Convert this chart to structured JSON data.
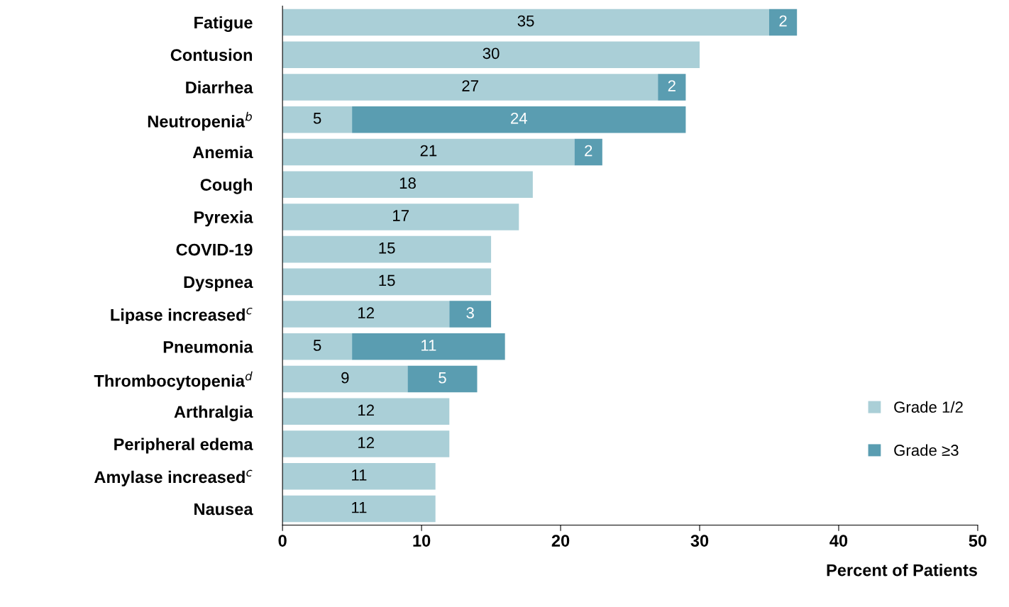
{
  "chart_data": {
    "type": "bar",
    "orientation": "horizontal",
    "stacked": true,
    "categories": [
      "Fatigue",
      "Contusion",
      "Diarrhea",
      "Neutropenia$^{b}$",
      "Anemia",
      "Cough",
      "Pyrexia",
      "COVID-19",
      "Dyspnea",
      "Lipase increased$^{c}$",
      "Pneumonia",
      "Thrombocytopenia$^{d}$",
      "Arthralgia",
      "Peripheral edema",
      "Amylase increased$^{c}$",
      "Nausea"
    ],
    "series": [
      {
        "name": "Grade 1/2",
        "color": "#aacfd7",
        "values": [
          35,
          30,
          27,
          5,
          21,
          18,
          17,
          15,
          15,
          12,
          5,
          9,
          12,
          12,
          11,
          11
        ]
      },
      {
        "name": "Grade ≥3",
        "color": "#5a9db1",
        "values": [
          2,
          null,
          2,
          24,
          2,
          null,
          null,
          null,
          null,
          3,
          11,
          5,
          null,
          null,
          null,
          null
        ]
      }
    ],
    "xlim": [
      0,
      50
    ],
    "xticks": [
      0,
      10,
      20,
      30,
      40,
      50
    ],
    "xlabel": "Percent of Patients",
    "data_labels": true,
    "legend": "bottom right",
    "grid": false
  }
}
